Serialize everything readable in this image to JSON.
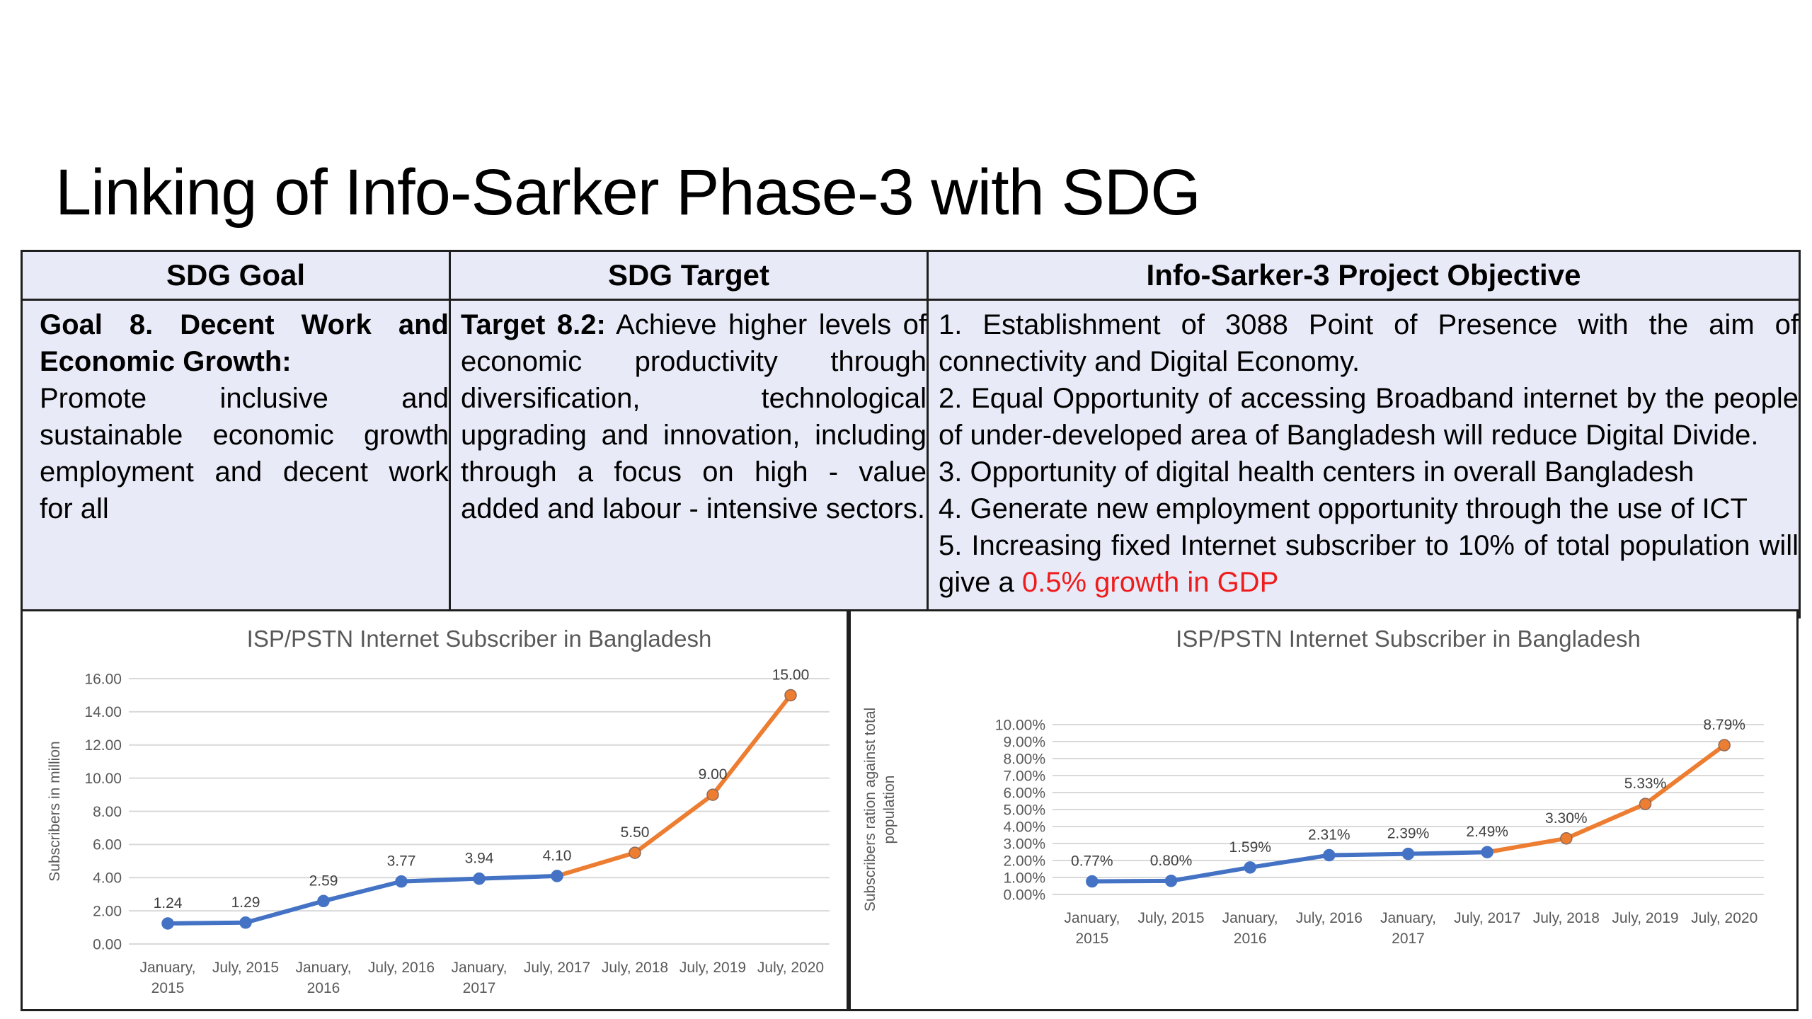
{
  "slide": {
    "title": "Linking of Info-Sarker Phase-3 with SDG"
  },
  "table": {
    "headers": [
      "SDG Goal",
      "SDG Target",
      "Info-Sarker-3 Project Objective"
    ],
    "goal": {
      "heading": "Goal 8. Decent Work and Economic Growth:",
      "text": "Promote inclusive and sustainable economic growth employment and decent work for all"
    },
    "target": {
      "heading": "Target 8.2:",
      "text": "Achieve higher levels of economic productivity through diversification, technological upgrading and innovation, including through a focus on high - value added and labour - intensive sectors."
    },
    "objectives": [
      "1. Establishment of 3088 Point of Presence with the aim of connectivity and Digital Economy.",
      "2. Equal Opportunity of accessing Broadband internet by the people of under-developed area of Bangladesh will reduce Digital Divide.",
      "3. Opportunity of digital health centers in overall Bangladesh",
      "4. Generate new employment opportunity through the use of ICT"
    ],
    "objective5_prefix": "5. Increasing fixed Internet subscriber to 10% of total population will give a ",
    "objective5_highlight": "0.5% growth in GDP"
  },
  "colors": {
    "actual": "#4472c4",
    "projected": "#ed7d31",
    "highlight": "#ee1c1c",
    "header_bg": "#e8ebf7"
  },
  "chart_data": [
    {
      "type": "line",
      "title": "ISP/PSTN Internet Subscriber in Bangladesh",
      "ylabel": "Subscribers in million",
      "xlabel": "",
      "categories": [
        [
          "January,",
          "2015"
        ],
        [
          "July, 2015"
        ],
        [
          "January,",
          "2016"
        ],
        [
          "July, 2016"
        ],
        [
          "January,",
          "2017"
        ],
        [
          "July, 2017"
        ],
        [
          "July, 2018"
        ],
        [
          "July, 2019"
        ],
        [
          "July, 2020"
        ]
      ],
      "values": [
        1.24,
        1.29,
        2.59,
        3.77,
        3.94,
        4.1,
        5.5,
        9.0,
        15.0
      ],
      "labels": [
        "1.24",
        "1.29",
        "2.59",
        "3.77",
        "3.94",
        "4.10",
        "5.50",
        "9.00",
        "15.00"
      ],
      "actual_until_index": 5,
      "ylim": [
        0,
        16
      ],
      "yticks": [
        "0.00",
        "2.00",
        "4.00",
        "6.00",
        "8.00",
        "10.00",
        "12.00",
        "14.00",
        "16.00"
      ],
      "grid": true,
      "legend": "none"
    },
    {
      "type": "line",
      "title": "ISP/PSTN Internet Subscriber in Bangladesh",
      "ylabel": "Subscribers ration against total population",
      "xlabel": "",
      "categories": [
        [
          "January,",
          "2015"
        ],
        [
          "July, 2015"
        ],
        [
          "January,",
          "2016"
        ],
        [
          "July, 2016"
        ],
        [
          "January,",
          "2017"
        ],
        [
          "July, 2017"
        ],
        [
          "July, 2018"
        ],
        [
          "July, 2019"
        ],
        [
          "July, 2020"
        ]
      ],
      "values": [
        0.77,
        0.8,
        1.59,
        2.31,
        2.39,
        2.49,
        3.3,
        5.33,
        8.79
      ],
      "labels": [
        "0.77%",
        "0.80%",
        "1.59%",
        "2.31%",
        "2.39%",
        "2.49%",
        "3.30%",
        "5.33%",
        "8.79%"
      ],
      "actual_until_index": 5,
      "ylim": [
        0,
        10
      ],
      "yticks": [
        "0.00%",
        "1.00%",
        "2.00%",
        "3.00%",
        "4.00%",
        "5.00%",
        "6.00%",
        "7.00%",
        "8.00%",
        "9.00%",
        "10.00%"
      ],
      "grid": true,
      "legend": "none"
    }
  ]
}
